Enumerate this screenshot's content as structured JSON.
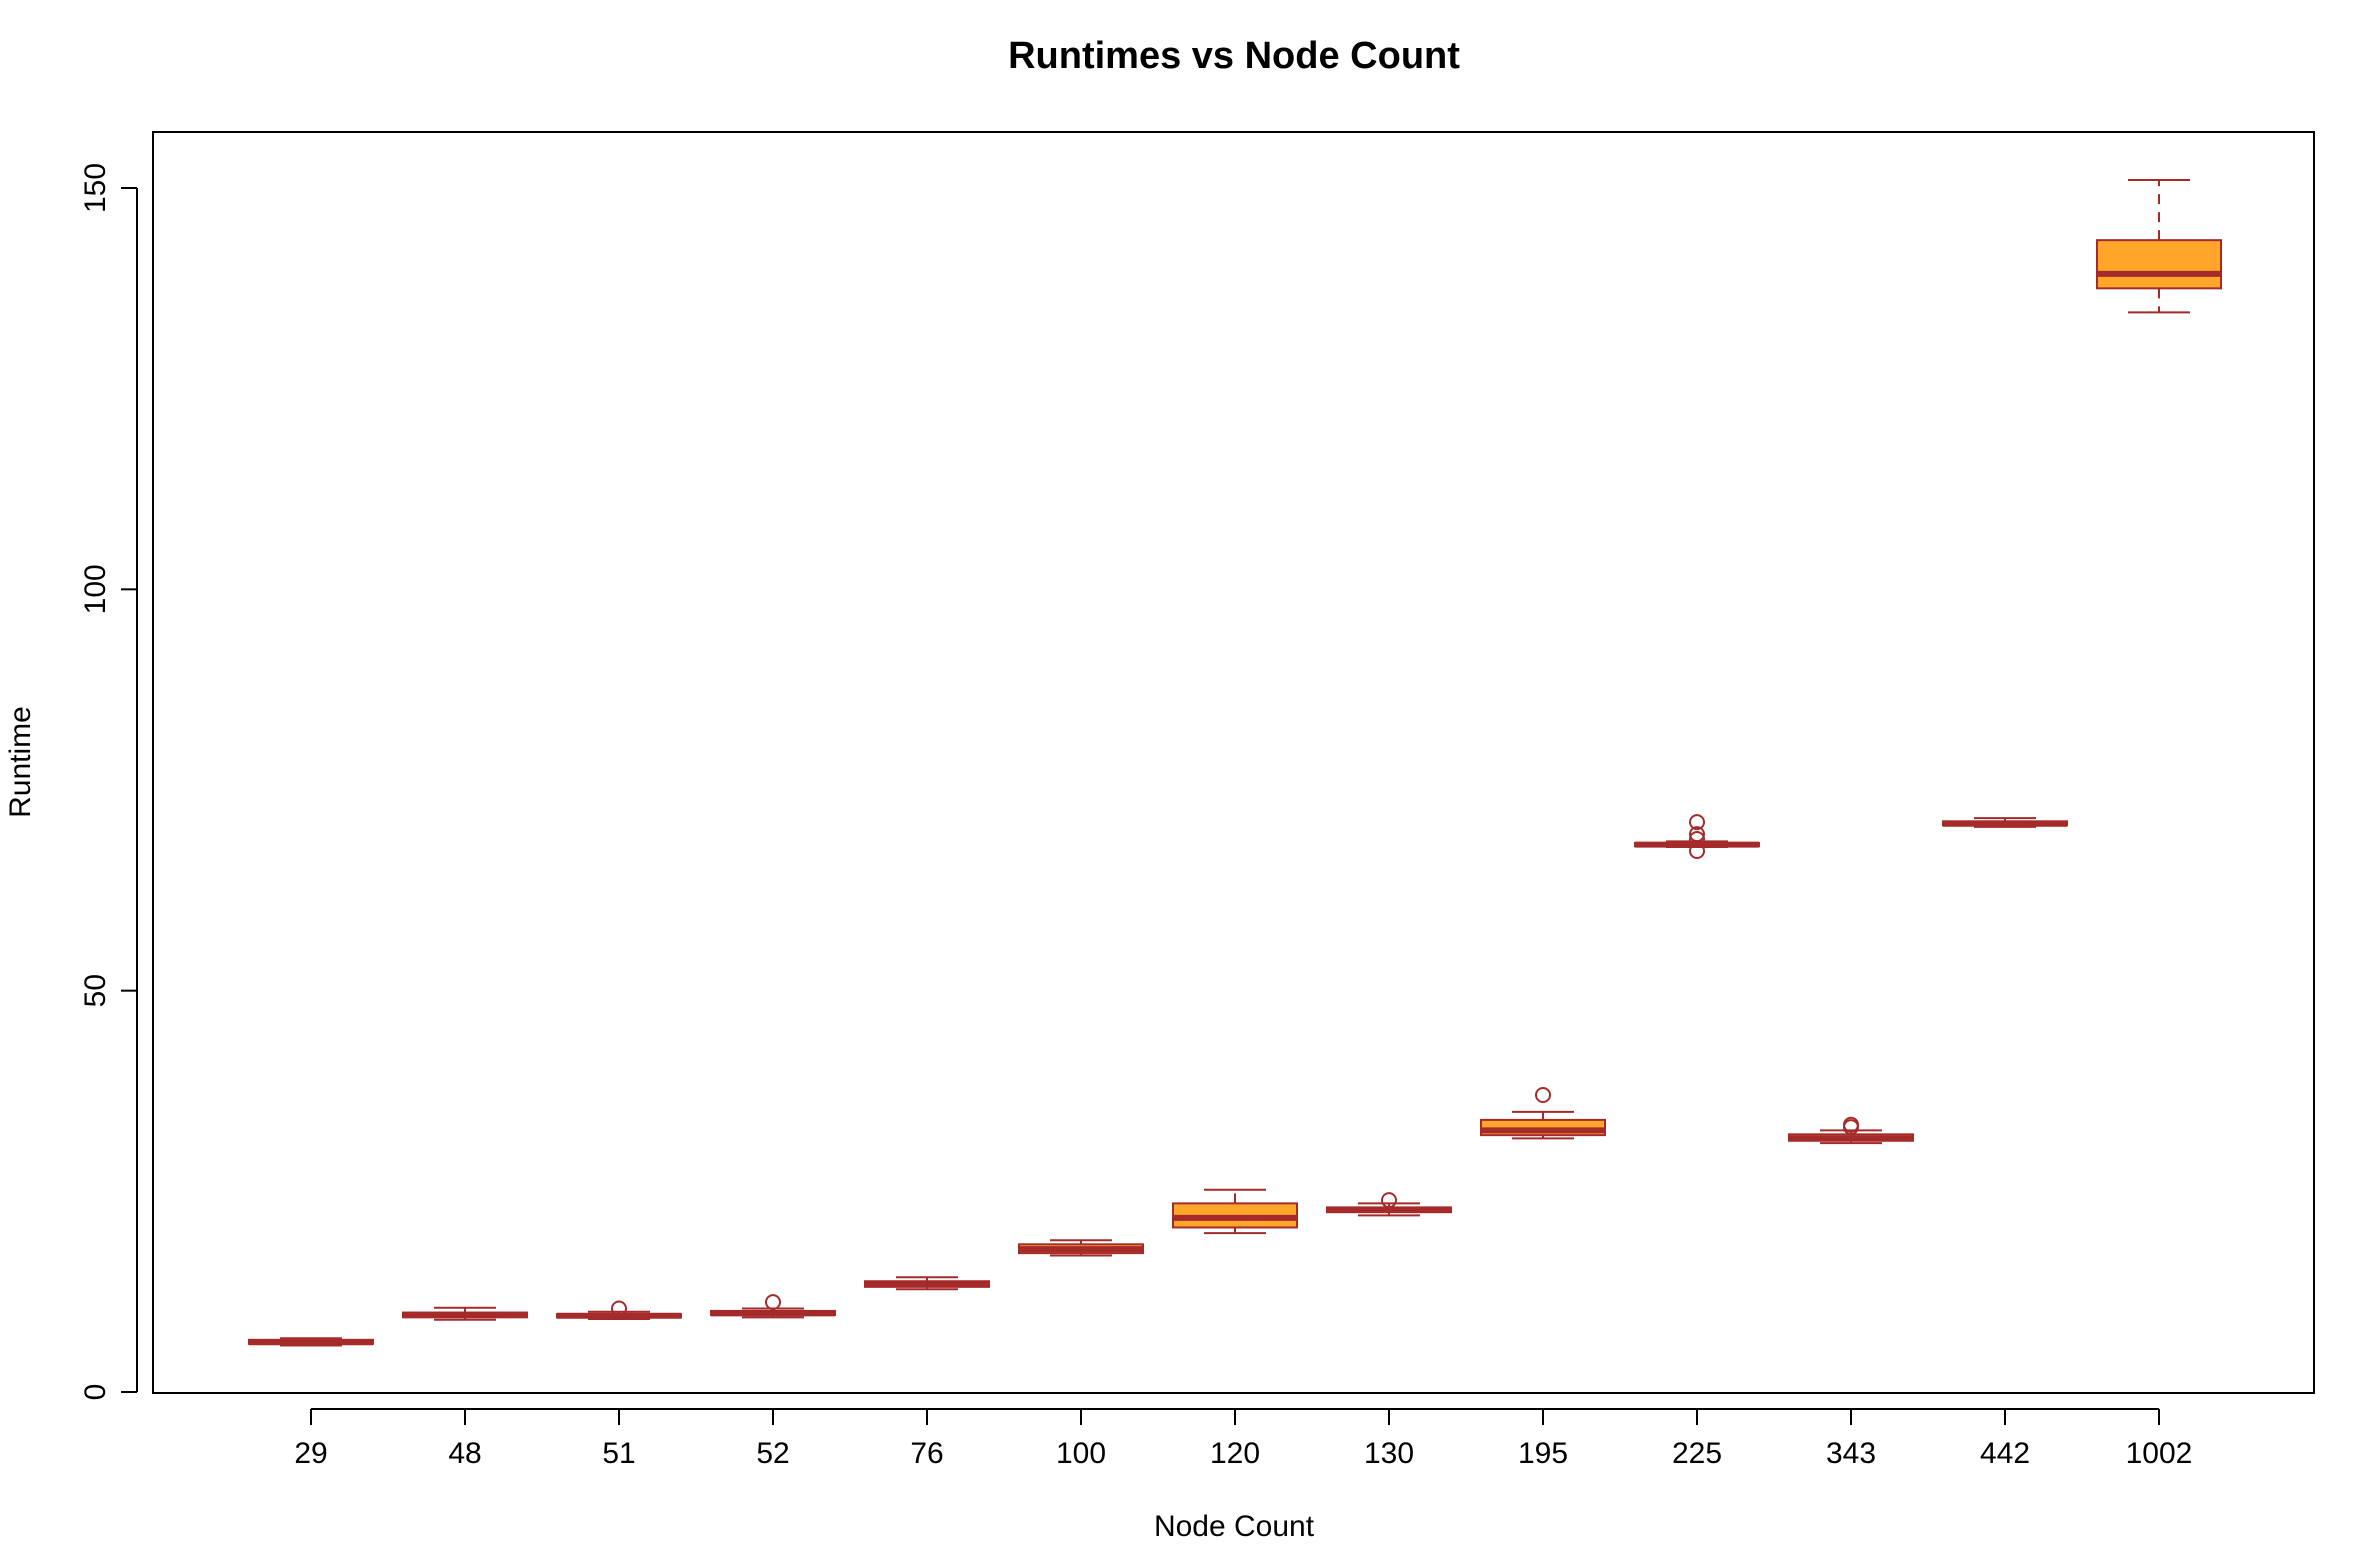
{
  "chart_data": {
    "type": "boxplot",
    "title": "Runtimes vs Node Count",
    "xlabel": "Node Count",
    "ylabel": "Runtime",
    "ylim": [
      0,
      157
    ],
    "yticks": [
      0,
      50,
      100,
      150
    ],
    "categories": [
      "29",
      "48",
      "51",
      "52",
      "76",
      "100",
      "120",
      "130",
      "195",
      "225",
      "343",
      "442",
      "1002"
    ],
    "boxes": [
      {
        "lower_whisker": 5.8,
        "q1": 6.0,
        "median": 6.2,
        "q3": 6.5,
        "upper_whisker": 6.7,
        "outliers": []
      },
      {
        "lower_whisker": 9.0,
        "q1": 9.3,
        "median": 9.6,
        "q3": 9.9,
        "upper_whisker": 10.5,
        "outliers": []
      },
      {
        "lower_whisker": 9.1,
        "q1": 9.3,
        "median": 9.5,
        "q3": 9.7,
        "upper_whisker": 10.0,
        "outliers": [
          10.4
        ]
      },
      {
        "lower_whisker": 9.3,
        "q1": 9.6,
        "median": 9.8,
        "q3": 10.1,
        "upper_whisker": 10.4,
        "outliers": [
          11.2
        ]
      },
      {
        "lower_whisker": 12.8,
        "q1": 13.1,
        "median": 13.4,
        "q3": 13.8,
        "upper_whisker": 14.3,
        "outliers": []
      },
      {
        "lower_whisker": 17.0,
        "q1": 17.3,
        "median": 17.8,
        "q3": 18.4,
        "upper_whisker": 18.9,
        "outliers": []
      },
      {
        "lower_whisker": 19.8,
        "q1": 20.5,
        "median": 21.7,
        "q3": 23.5,
        "upper_whisker": 25.2,
        "outliers": []
      },
      {
        "lower_whisker": 22.0,
        "q1": 22.4,
        "median": 22.7,
        "q3": 23.0,
        "upper_whisker": 23.5,
        "outliers": [
          23.9
        ]
      },
      {
        "lower_whisker": 31.6,
        "q1": 32.0,
        "median": 32.6,
        "q3": 33.9,
        "upper_whisker": 34.9,
        "outliers": [
          37.0
        ]
      },
      {
        "lower_whisker": 67.9,
        "q1": 68.0,
        "median": 68.2,
        "q3": 68.4,
        "upper_whisker": 68.6,
        "outliers": [
          71.0,
          69.5,
          68.9,
          67.4
        ]
      },
      {
        "lower_whisker": 31.0,
        "q1": 31.3,
        "median": 31.6,
        "q3": 32.1,
        "upper_whisker": 32.6,
        "outliers": [
          33.0,
          33.3
        ]
      },
      {
        "lower_whisker": 70.4,
        "q1": 70.6,
        "median": 70.8,
        "q3": 71.1,
        "upper_whisker": 71.5,
        "outliers": []
      },
      {
        "lower_whisker": 134.5,
        "q1": 137.5,
        "median": 139.3,
        "q3": 143.5,
        "upper_whisker": 151.0,
        "outliers": []
      }
    ],
    "colors": {
      "box_fill": "#ffa52a",
      "box_border": "#a52a2a",
      "frame": "#000000"
    },
    "grid": false,
    "legend": "none"
  }
}
